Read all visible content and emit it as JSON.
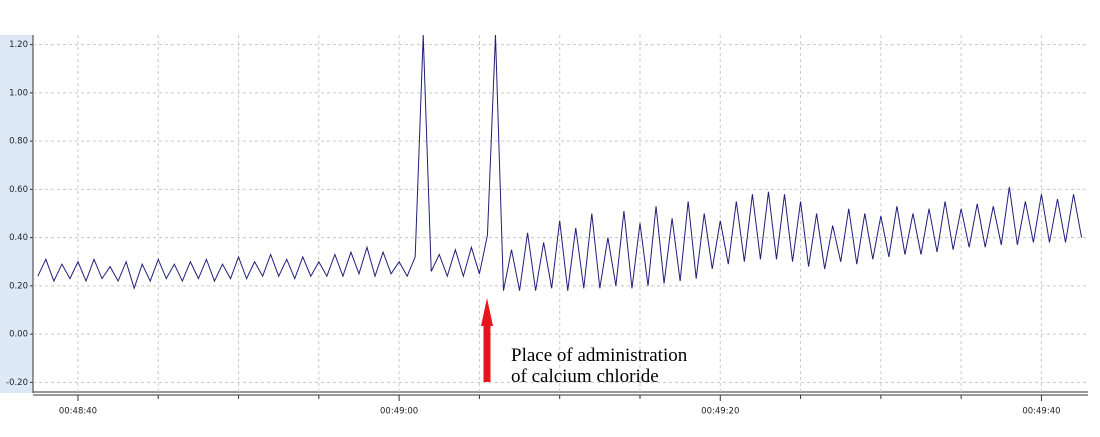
{
  "chart_data": {
    "type": "line",
    "x": [
      2917.5,
      2918,
      2918.5,
      2919,
      2919.5,
      2920,
      2920.5,
      2921,
      2921.5,
      2922,
      2922.5,
      2923,
      2923.5,
      2924,
      2924.5,
      2925,
      2925.5,
      2926,
      2926.5,
      2927,
      2927.5,
      2928,
      2928.5,
      2929,
      2929.5,
      2930,
      2930.5,
      2931,
      2931.5,
      2932,
      2932.5,
      2933,
      2933.5,
      2934,
      2934.5,
      2935,
      2935.5,
      2936,
      2936.5,
      2937,
      2937.5,
      2938,
      2938.5,
      2939,
      2939.5,
      2940,
      2940.5,
      2941,
      2941.5,
      2942,
      2942.5,
      2943,
      2943.5,
      2944,
      2944.5,
      2945,
      2945.5,
      2946,
      2946.5,
      2947,
      2947.5,
      2948,
      2948.5,
      2949,
      2949.5,
      2950,
      2950.5,
      2951,
      2951.5,
      2952,
      2952.5,
      2953,
      2953.5,
      2954,
      2954.5,
      2955,
      2955.5,
      2956,
      2956.5,
      2957,
      2957.5,
      2958,
      2958.5,
      2959,
      2959.5,
      2960,
      2960.5,
      2961,
      2961.5,
      2962,
      2962.5,
      2963,
      2963.5,
      2964,
      2964.5,
      2965,
      2965.5,
      2966,
      2966.5,
      2967,
      2967.5,
      2968,
      2968.5,
      2969,
      2969.5,
      2970,
      2970.5,
      2971,
      2971.5,
      2972,
      2972.5,
      2973,
      2973.5,
      2974,
      2974.5,
      2975,
      2975.5,
      2976,
      2976.5,
      2977,
      2977.5,
      2978,
      2978.5,
      2979,
      2979.5,
      2980,
      2980.5,
      2981,
      2981.5,
      2982,
      2982.5
    ],
    "values": [
      0.24,
      0.31,
      0.22,
      0.29,
      0.23,
      0.3,
      0.22,
      0.31,
      0.23,
      0.28,
      0.22,
      0.3,
      0.19,
      0.29,
      0.22,
      0.31,
      0.23,
      0.29,
      0.22,
      0.3,
      0.23,
      0.31,
      0.22,
      0.29,
      0.23,
      0.32,
      0.23,
      0.3,
      0.24,
      0.33,
      0.24,
      0.31,
      0.23,
      0.32,
      0.24,
      0.3,
      0.24,
      0.33,
      0.24,
      0.34,
      0.25,
      0.36,
      0.24,
      0.34,
      0.25,
      0.3,
      0.24,
      0.32,
      1.24,
      0.26,
      0.33,
      0.24,
      0.35,
      0.24,
      0.36,
      0.25,
      0.41,
      1.24,
      0.18,
      0.35,
      0.18,
      0.42,
      0.18,
      0.38,
      0.19,
      0.47,
      0.18,
      0.44,
      0.19,
      0.5,
      0.19,
      0.4,
      0.2,
      0.51,
      0.19,
      0.46,
      0.2,
      0.53,
      0.21,
      0.48,
      0.22,
      0.55,
      0.23,
      0.5,
      0.27,
      0.47,
      0.29,
      0.55,
      0.3,
      0.58,
      0.31,
      0.59,
      0.31,
      0.58,
      0.3,
      0.55,
      0.28,
      0.5,
      0.27,
      0.45,
      0.3,
      0.52,
      0.29,
      0.5,
      0.31,
      0.49,
      0.32,
      0.53,
      0.33,
      0.5,
      0.33,
      0.52,
      0.34,
      0.55,
      0.35,
      0.52,
      0.36,
      0.54,
      0.36,
      0.53,
      0.37,
      0.61,
      0.37,
      0.55,
      0.38,
      0.58,
      0.38,
      0.56,
      0.38,
      0.58,
      0.4
    ],
    "color": "#1f1f7a",
    "xlim": [
      2917.2,
      2982.9
    ],
    "ylim": [
      -0.24,
      1.24
    ],
    "xticks": [
      {
        "value": 2920,
        "label": "00:48:40"
      },
      {
        "value": 2940,
        "label": "00:49:00"
      },
      {
        "value": 2960,
        "label": "00:49:20"
      },
      {
        "value": 2980,
        "label": "00:49:40"
      }
    ],
    "xgrid_minor": [
      2925,
      2930,
      2935,
      2945,
      2950,
      2955,
      2965,
      2970,
      2975
    ],
    "yticks": [
      {
        "value": -0.2,
        "label": "-0.20"
      },
      {
        "value": 0,
        "label": "0.00"
      },
      {
        "value": 0.2,
        "label": "0.20"
      },
      {
        "value": 0.4,
        "label": "0.40"
      },
      {
        "value": 0.6,
        "label": "0.60"
      },
      {
        "value": 0.8,
        "label": "0.80"
      },
      {
        "value": 1,
        "label": "1.00"
      },
      {
        "value": 1.2,
        "label": "1.20"
      }
    ],
    "grid": true,
    "annotation": [
      "Place of administration",
      "of calcium chloride"
    ]
  }
}
